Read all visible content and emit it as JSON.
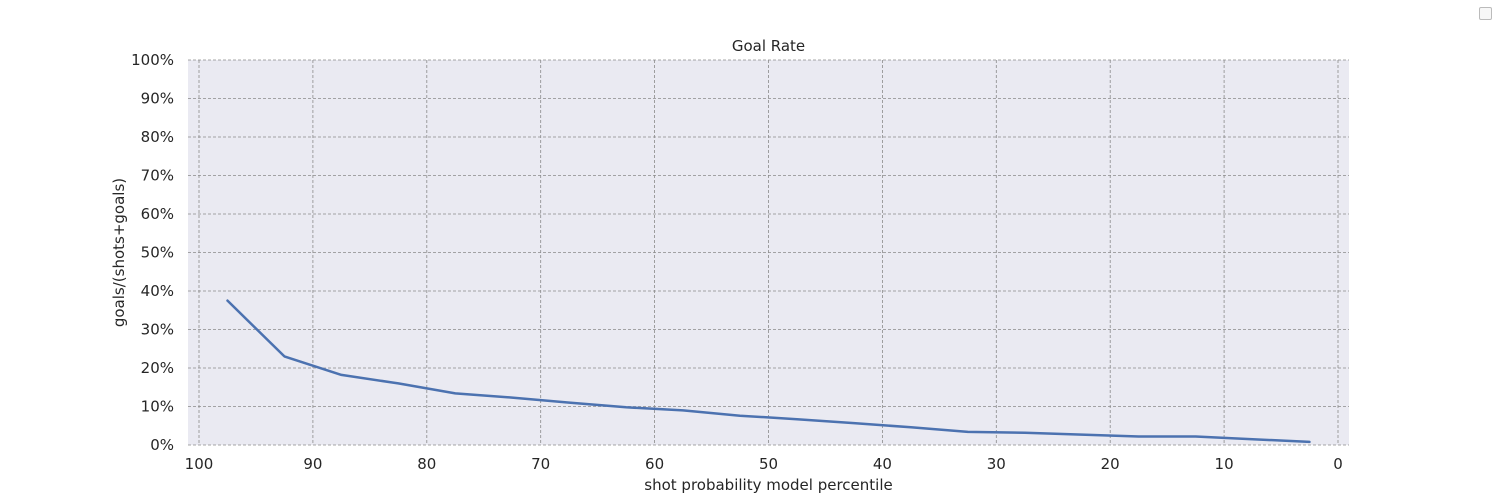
{
  "chart_data": {
    "type": "line",
    "title": "Goal Rate",
    "xlabel": "shot probability model percentile",
    "ylabel": "goals/(shots+goals)",
    "xlim": [
      100,
      0
    ],
    "ylim": [
      0,
      100
    ],
    "x_ticks": [
      100,
      90,
      80,
      70,
      60,
      50,
      40,
      30,
      20,
      10,
      0
    ],
    "x_tick_labels": [
      "100",
      "90",
      "80",
      "70",
      "60",
      "50",
      "40",
      "30",
      "20",
      "10",
      "0"
    ],
    "y_ticks": [
      0,
      10,
      20,
      30,
      40,
      50,
      60,
      70,
      80,
      90,
      100
    ],
    "y_tick_labels": [
      "0%",
      "10%",
      "20%",
      "30%",
      "40%",
      "50%",
      "60%",
      "70%",
      "80%",
      "90%",
      "100%"
    ],
    "grid": true,
    "legend": "top-right (empty)",
    "series": [
      {
        "color": "#4c72b0",
        "x": [
          97.5,
          92.5,
          87.5,
          82.5,
          77.5,
          72.5,
          67.5,
          62.5,
          57.5,
          52.5,
          47.5,
          42.5,
          37.5,
          32.5,
          27.5,
          22.5,
          17.5,
          12.5,
          7.5,
          2.5
        ],
        "y": [
          37.5,
          23.0,
          18.2,
          16.0,
          13.4,
          12.3,
          11.0,
          9.8,
          9.0,
          7.6,
          6.7,
          5.7,
          4.6,
          3.4,
          3.2,
          2.7,
          2.2,
          2.2,
          1.5,
          0.8
        ]
      }
    ]
  }
}
